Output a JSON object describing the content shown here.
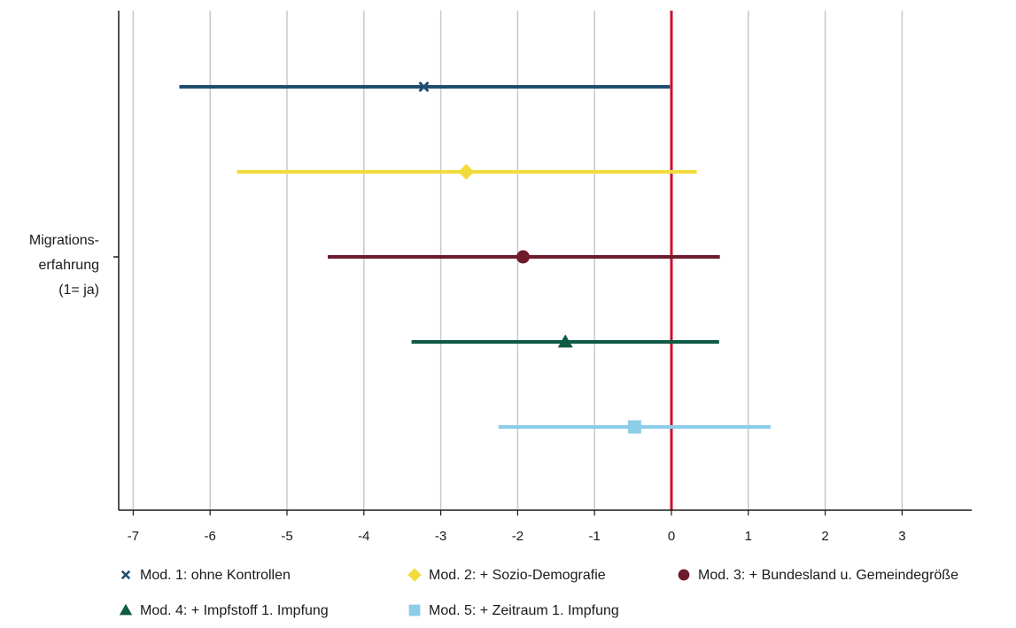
{
  "chart_data": {
    "type": "scatter",
    "title": "",
    "xlabel": "",
    "ylabel": "",
    "xlim": [
      -7.2,
      3.9
    ],
    "xticks": [
      -7,
      -6,
      -5,
      -4,
      -3,
      -2,
      -1,
      0,
      1,
      2,
      3
    ],
    "xtick_labels": [
      "-7",
      "-6",
      "-5",
      "-4",
      "-3",
      "-2",
      "-1",
      "0",
      "1",
      "2",
      "3"
    ],
    "grid": "vertical",
    "reference_line": {
      "x": 0,
      "color": "#c8102e"
    },
    "category": {
      "lines": [
        "Migrations-",
        "erfahrung",
        "(1= ja)"
      ]
    },
    "legend_position": "bottom",
    "series": [
      {
        "name": "Mod. 1: ohne Kontrollen",
        "estimate": -3.22,
        "ci": [
          -6.4,
          -0.02
        ],
        "color": "#1f4e6e",
        "marker": "x"
      },
      {
        "name": "Mod. 2: + Sozio-Demografie",
        "estimate": -2.67,
        "ci": [
          -5.65,
          0.33
        ],
        "color": "#f2dc3c",
        "marker": "diamond"
      },
      {
        "name": "Mod. 3: + Bundesland u. Gemeindegröße",
        "estimate": -1.93,
        "ci": [
          -4.47,
          0.63
        ],
        "color": "#6e1a2d",
        "marker": "circle"
      },
      {
        "name": "Mod. 4: + Impfstoff 1. Impfung",
        "estimate": -1.38,
        "ci": [
          -3.38,
          0.62
        ],
        "color": "#0f5a45",
        "marker": "triangle"
      },
      {
        "name": "Mod. 5: + Zeitraum 1. Impfung",
        "estimate": -0.48,
        "ci": [
          -2.25,
          1.29
        ],
        "color": "#8ccde8",
        "marker": "square"
      }
    ]
  }
}
